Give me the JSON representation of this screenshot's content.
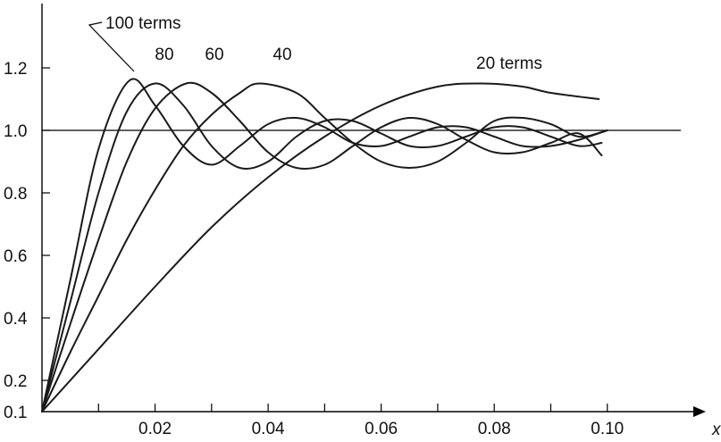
{
  "chart_data": {
    "type": "line",
    "title": "",
    "xlabel": "x",
    "ylabel": "",
    "xlim": [
      0,
      0.113
    ],
    "ylim": [
      0.1,
      1.4
    ],
    "grid": false,
    "reference_line": 1.0,
    "x_ticks": [
      0.01,
      0.02,
      0.03,
      0.04,
      0.05,
      0.06,
      0.07,
      0.08,
      0.09,
      0.1
    ],
    "x_tick_labels": [
      {
        "value": 0.02,
        "label": "0.02"
      },
      {
        "value": 0.04,
        "label": "0.04"
      },
      {
        "value": 0.06,
        "label": "0.06"
      },
      {
        "value": 0.08,
        "label": "0.08"
      },
      {
        "value": 0.1,
        "label": "0.10"
      }
    ],
    "y_ticks": [
      {
        "value": 0.1,
        "label": "0.1"
      },
      {
        "value": 0.2,
        "label": "0.2"
      },
      {
        "value": 0.4,
        "label": "0.4"
      },
      {
        "value": 0.6,
        "label": "0.6"
      },
      {
        "value": 0.8,
        "label": "0.8"
      },
      {
        "value": 1.0,
        "label": "1.0"
      },
      {
        "value": 1.2,
        "label": "1.2"
      }
    ],
    "series": [
      {
        "name": "100 terms",
        "x": [
          0,
          0.005,
          0.01,
          0.0155,
          0.02,
          0.025,
          0.03,
          0.035,
          0.04,
          0.045,
          0.05,
          0.055,
          0.06,
          0.065,
          0.07,
          0.075,
          0.08,
          0.085,
          0.09,
          0.095,
          0.1
        ],
        "y": [
          0.1,
          0.52,
          0.94,
          1.16,
          1.08,
          0.95,
          0.89,
          0.95,
          1.02,
          1.04,
          1.01,
          0.96,
          0.95,
          0.98,
          1.01,
          1.01,
          0.98,
          0.95,
          0.95,
          0.97,
          1.0
        ]
      },
      {
        "name": "80",
        "x": [
          0,
          0.005,
          0.01,
          0.015,
          0.02,
          0.025,
          0.03,
          0.035,
          0.04,
          0.045,
          0.05,
          0.055,
          0.06,
          0.065,
          0.07,
          0.075,
          0.08,
          0.085,
          0.09,
          0.095,
          0.099
        ],
        "y": [
          0.1,
          0.45,
          0.8,
          1.06,
          1.15,
          1.08,
          0.95,
          0.88,
          0.9,
          0.98,
          1.03,
          1.03,
          0.99,
          0.95,
          0.95,
          0.98,
          1.01,
          1.01,
          0.98,
          0.95,
          0.96
        ]
      },
      {
        "name": "60",
        "x": [
          0,
          0.005,
          0.01,
          0.015,
          0.02,
          0.0255,
          0.03,
          0.035,
          0.04,
          0.045,
          0.05,
          0.055,
          0.06,
          0.065,
          0.07,
          0.075,
          0.08,
          0.085,
          0.09,
          0.095,
          0.099
        ],
        "y": [
          0.1,
          0.38,
          0.65,
          0.9,
          1.07,
          1.15,
          1.12,
          1.03,
          0.93,
          0.88,
          0.89,
          0.95,
          1.01,
          1.04,
          1.02,
          0.97,
          0.93,
          0.93,
          0.96,
          0.99,
          0.92
        ]
      },
      {
        "name": "40",
        "x": [
          0,
          0.005,
          0.01,
          0.015,
          0.02,
          0.025,
          0.03,
          0.035,
          0.0385,
          0.045,
          0.05,
          0.055,
          0.06,
          0.065,
          0.07,
          0.075,
          0.08,
          0.085,
          0.09,
          0.095,
          0.1
        ],
        "y": [
          0.1,
          0.29,
          0.47,
          0.65,
          0.81,
          0.95,
          1.05,
          1.12,
          1.15,
          1.12,
          1.04,
          0.96,
          0.9,
          0.88,
          0.9,
          0.96,
          1.03,
          1.04,
          1.02,
          0.98,
          1.0
        ]
      },
      {
        "name": "20 terms",
        "x": [
          0,
          0.01,
          0.02,
          0.03,
          0.04,
          0.05,
          0.06,
          0.07,
          0.078,
          0.085,
          0.09,
          0.0985
        ],
        "y": [
          0.1,
          0.3,
          0.5,
          0.69,
          0.85,
          0.98,
          1.08,
          1.14,
          1.15,
          1.14,
          1.12,
          1.1
        ]
      }
    ],
    "annotations": [
      {
        "text": "100 terms",
        "series": "100 terms",
        "leader_line": true
      },
      {
        "text": "80",
        "series": "80"
      },
      {
        "text": "60",
        "series": "60"
      },
      {
        "text": "40",
        "series": "40"
      },
      {
        "text": "20 terms",
        "series": "20 terms"
      }
    ]
  }
}
